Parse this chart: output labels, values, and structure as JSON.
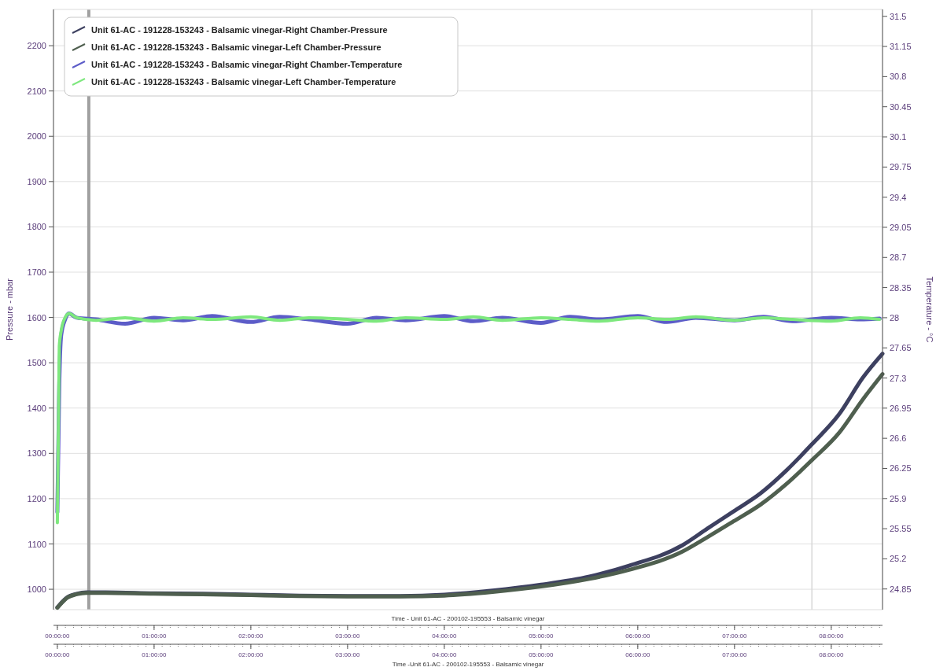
{
  "chart_data": {
    "type": "line",
    "xlabel": "Time - Unit 61-AC - 200102-195553 - Balsamic vinegar",
    "x2label": "Time -Unit 61-AC - 200102-195553 - Balsamic vinegar",
    "ylabel": "Pressure - mbar",
    "y2label": "Temperature - °C",
    "xlim": [
      -0.04,
      8.53
    ],
    "xticks": [
      {
        "value": 0,
        "label": "00:00:00"
      },
      {
        "value": 1,
        "label": "01:00:00"
      },
      {
        "value": 2,
        "label": "02:00:00"
      },
      {
        "value": 3,
        "label": "03:00:00"
      },
      {
        "value": 4,
        "label": "04:00:00"
      },
      {
        "value": 5,
        "label": "05:00:00"
      },
      {
        "value": 6,
        "label": "06:00:00"
      },
      {
        "value": 7,
        "label": "07:00:00"
      },
      {
        "value": 8,
        "label": "08:00:00"
      }
    ],
    "x2lim": [
      -0.04,
      8.53
    ],
    "x2ticks": [
      {
        "value": 0,
        "label": "00:00:00"
      },
      {
        "value": 1,
        "label": "01:00:00"
      },
      {
        "value": 2,
        "label": "02:00:00"
      },
      {
        "value": 3,
        "label": "03:00:00"
      },
      {
        "value": 4,
        "label": "04:00:00"
      },
      {
        "value": 5,
        "label": "05:00:00"
      },
      {
        "value": 6,
        "label": "06:00:00"
      },
      {
        "value": 7,
        "label": "07:00:00"
      },
      {
        "value": 8,
        "label": "08:00:00"
      }
    ],
    "ylim": [
      955,
      2280
    ],
    "yticks": [
      1000,
      1100,
      1200,
      1300,
      1400,
      1500,
      1600,
      1700,
      1800,
      1900,
      2000,
      2100,
      2200
    ],
    "y2lim": [
      24.61,
      31.58
    ],
    "y2ticks": [
      24.85,
      25.2,
      25.55,
      25.9,
      26.25,
      26.6,
      26.95,
      27.3,
      27.65,
      28,
      28.35,
      28.7,
      29.05,
      29.4,
      29.75,
      30.1,
      30.45,
      30.8,
      31.15,
      31.5
    ],
    "grid": "y",
    "legend": "top left",
    "ref_lines": [
      {
        "axis": "x",
        "value": 0.325,
        "color": "#a0a0a0"
      },
      {
        "axis": "x",
        "value": 7.8,
        "color": "#d8d8d8"
      }
    ],
    "series": [
      {
        "name": "Unit 61-AC - 191228-153243 - Balsamic vinegar-Right Chamber-Pressure",
        "color": "#3d4060",
        "x": [
          0,
          0.05,
          0.1,
          0.2,
          0.3,
          0.5,
          1,
          1.5,
          2,
          2.5,
          3,
          3.5,
          4,
          4.5,
          5,
          5.5,
          5.91,
          6.46,
          6.72,
          6.99,
          7.27,
          7.54,
          7.8,
          8.08,
          8.33,
          8.53
        ],
        "values": [
          960,
          972,
          982,
          990,
          993,
          993,
          991,
          990,
          988,
          986,
          985,
          985,
          988,
          997,
          1010,
          1028,
          1052,
          1097,
          1134,
          1172,
          1212,
          1263,
          1320,
          1386,
          1468,
          1520
        ]
      },
      {
        "name": "Unit 61-AC - 191228-153243 - Balsamic vinegar-Left Chamber-Pressure",
        "color": "#4f5f4f",
        "x": [
          0,
          0.05,
          0.1,
          0.2,
          0.3,
          0.5,
          1,
          1.5,
          2,
          2.5,
          3,
          3.5,
          4,
          4.5,
          5,
          5.5,
          5.91,
          6.46,
          6.72,
          6.99,
          7.27,
          7.54,
          7.8,
          8.08,
          8.33,
          8.53
        ],
        "values": [
          959,
          971,
          981,
          989,
          992,
          992,
          990,
          989,
          987,
          985,
          984,
          984,
          986,
          994,
          1006,
          1023,
          1043,
          1083,
          1115,
          1150,
          1187,
          1233,
          1285,
          1345,
          1420,
          1475
        ]
      },
      {
        "name": "Unit 61-AC - 191228-153243 - Balsamic vinegar-Right Chamber-Temperature",
        "color": "#5c5cc8",
        "axis": "y2",
        "x": [
          0,
          0.02,
          0.04,
          0.08,
          0.12,
          0.2,
          0.4,
          0.7,
          1,
          1.3,
          1.6,
          2,
          2.3,
          2.6,
          3,
          3.3,
          3.6,
          4,
          4.3,
          4.6,
          5,
          5.3,
          5.6,
          6,
          6.3,
          6.6,
          7,
          7.3,
          7.6,
          8,
          8.3,
          8.5
        ],
        "values": [
          25.74,
          27.24,
          27.8,
          27.98,
          28.05,
          28.0,
          27.98,
          27.93,
          28.0,
          27.97,
          28.02,
          27.95,
          28.01,
          27.98,
          27.93,
          28.0,
          27.97,
          28.02,
          27.96,
          28.0,
          27.94,
          28.01,
          27.98,
          28.02,
          27.95,
          28.0,
          27.97,
          28.01,
          27.96,
          28.0,
          27.98,
          27.99
        ]
      },
      {
        "name": "Unit 61-AC - 191228-153243 - Balsamic vinegar-Left Chamber-Temperature",
        "color": "#7ee87e",
        "axis": "y2",
        "x": [
          0,
          0.02,
          0.04,
          0.08,
          0.12,
          0.2,
          0.4,
          0.7,
          1,
          1.3,
          1.6,
          2,
          2.3,
          2.6,
          3,
          3.3,
          3.6,
          4,
          4.3,
          4.6,
          5,
          5.3,
          5.6,
          6,
          6.3,
          6.6,
          7,
          7.3,
          7.6,
          8,
          8.3,
          8.5
        ],
        "values": [
          25.62,
          27.67,
          27.85,
          28.0,
          28.05,
          28.0,
          27.97,
          28.0,
          27.96,
          28.0,
          27.98,
          28.01,
          27.97,
          28.0,
          27.98,
          27.96,
          28.0,
          27.98,
          28.01,
          27.97,
          28.0,
          27.98,
          27.96,
          28.0,
          27.98,
          28.01,
          27.97,
          28.0,
          27.98,
          27.96,
          28.0,
          27.98
        ]
      }
    ]
  }
}
